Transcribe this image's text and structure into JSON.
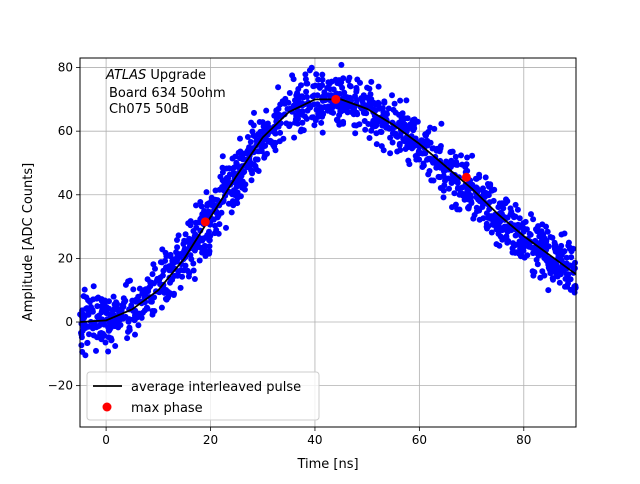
{
  "chart_data": {
    "type": "scatter",
    "xlabel": "Time [ns]",
    "ylabel": "Amplitude [ADC Counts]",
    "xlim": [
      -5,
      90
    ],
    "ylim": [
      -33,
      83
    ],
    "xticks": [
      0,
      20,
      40,
      60,
      80
    ],
    "yticks": [
      -20,
      0,
      20,
      40,
      60,
      80
    ],
    "xtick_labels": [
      "0",
      "20",
      "40",
      "60",
      "80"
    ],
    "ytick_labels": [
      "−20",
      "0",
      "20",
      "40",
      "60",
      "80"
    ],
    "grid": true,
    "annotation": {
      "italic": "ATLAS",
      "line1_rest": " Upgrade",
      "line2": "Board 634 50ohm",
      "line3": "Ch075 50dB"
    },
    "legend": {
      "placement": "lower-left",
      "entries": [
        {
          "label": "average interleaved pulse",
          "marker": "line",
          "color": "#000000"
        },
        {
          "label": "max phase",
          "marker": "dot",
          "color": "#ff0000"
        }
      ]
    },
    "colors": {
      "samples": "#0000ff",
      "pulse": "#000000",
      "max_phase": "#ff0000"
    },
    "average_pulse": {
      "x": [
        -5,
        0,
        5,
        10,
        15,
        20,
        25,
        30,
        35,
        40,
        45,
        50,
        55,
        60,
        65,
        70,
        75,
        80,
        85,
        90
      ],
      "y": [
        0,
        0.5,
        4,
        10,
        20,
        33,
        46,
        58,
        66,
        70,
        70,
        67,
        62,
        56,
        49,
        42,
        34,
        27,
        21,
        15
      ]
    },
    "max_phase_points": {
      "x": [
        19,
        44,
        69
      ],
      "y": [
        31.5,
        70,
        45.5
      ]
    },
    "samples": {
      "x_range": [
        -5,
        90
      ],
      "count": 1400,
      "noise_amplitude": 5,
      "note_series": "scattered sample points around the average pulse"
    }
  }
}
